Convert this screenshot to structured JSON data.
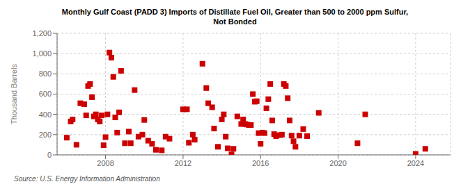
{
  "chart_data": {
    "type": "scatter",
    "title": "Monthly Gulf Coast (PADD 3) Imports of Distillate Fuel Oil, Greater than 500 to 2000 ppm Sulfur,\nNot Bonded",
    "ylabel": "Thousand Barrels",
    "annotations": [
      "Source: U.S. Energy Information Administration"
    ],
    "color": "#cc0000",
    "marker": "square",
    "grid": true,
    "xlim": [
      2005.5,
      2025.8
    ],
    "ylim": [
      0,
      1200
    ],
    "xticks": [
      2008,
      2012,
      2016,
      2020,
      2024
    ],
    "yticks": [
      0,
      200,
      400,
      600,
      800,
      {
        "value": 1000,
        "label": "1,000"
      },
      {
        "value": 1200,
        "label": "1,200"
      }
    ],
    "x": [
      2006.0,
      2006.2,
      2006.3,
      2006.5,
      2006.7,
      2006.9,
      2007.0,
      2007.1,
      2007.2,
      2007.3,
      2007.4,
      2007.5,
      2007.6,
      2007.7,
      2007.8,
      2007.9,
      2008.0,
      2008.1,
      2008.2,
      2008.3,
      2008.4,
      2008.5,
      2008.6,
      2008.7,
      2008.8,
      2009.0,
      2009.2,
      2009.3,
      2009.5,
      2009.7,
      2009.9,
      2010.0,
      2010.2,
      2010.4,
      2010.6,
      2010.9,
      2011.1,
      2011.3,
      2012.0,
      2012.2,
      2012.3,
      2012.5,
      2012.6,
      2013.0,
      2013.2,
      2013.3,
      2013.5,
      2013.6,
      2013.8,
      2014.0,
      2014.1,
      2014.2,
      2014.3,
      2014.5,
      2014.6,
      2014.8,
      2015.0,
      2015.1,
      2015.2,
      2015.3,
      2015.4,
      2015.5,
      2015.6,
      2015.7,
      2015.8,
      2015.9,
      2016.0,
      2016.1,
      2016.2,
      2016.3,
      2016.4,
      2016.5,
      2016.6,
      2016.7,
      2016.8,
      2017.0,
      2017.1,
      2017.2,
      2017.3,
      2017.4,
      2017.5,
      2017.6,
      2017.7,
      2017.8,
      2018.0,
      2018.2,
      2018.4,
      2019.0,
      2021.0,
      2021.4,
      2024.0,
      2024.5
    ],
    "values": [
      170,
      330,
      350,
      100,
      510,
      500,
      390,
      680,
      700,
      570,
      380,
      400,
      350,
      330,
      390,
      95,
      175,
      400,
      1010,
      960,
      770,
      370,
      220,
      420,
      830,
      115,
      230,
      115,
      640,
      180,
      200,
      345,
      140,
      110,
      50,
      45,
      180,
      160,
      450,
      450,
      120,
      200,
      150,
      900,
      660,
      510,
      470,
      260,
      80,
      350,
      400,
      180,
      65,
      5,
      60,
      380,
      305,
      350,
      305,
      300,
      295,
      295,
      600,
      525,
      530,
      215,
      110,
      220,
      215,
      460,
      550,
      700,
      340,
      205,
      185,
      195,
      200,
      700,
      680,
      560,
      340,
      190,
      135,
      80,
      190,
      255,
      185,
      415,
      115,
      400,
      10,
      60
    ]
  }
}
